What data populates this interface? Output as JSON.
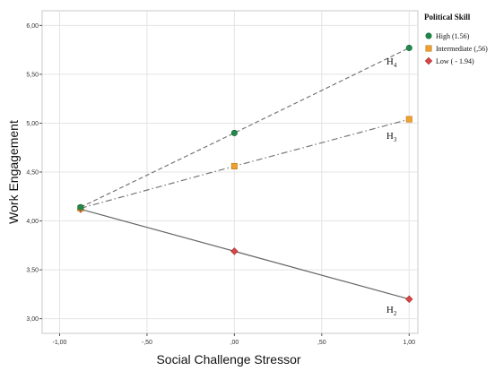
{
  "chart_data": {
    "type": "line",
    "xlabel": "Social Challenge Stressor",
    "ylabel": "Work Engagement",
    "xlim": [
      -1.1,
      1.05
    ],
    "ylim": [
      2.85,
      6.15
    ],
    "x_ticks": [
      -1.0,
      -0.5,
      0.0,
      0.5,
      1.0
    ],
    "x_tick_labels": [
      "-1,00",
      "-,50",
      ",00",
      ",50",
      "1,00"
    ],
    "y_ticks": [
      3.0,
      3.5,
      4.0,
      4.5,
      5.0,
      5.5,
      6.0
    ],
    "y_tick_labels": [
      "3,00",
      "3,50",
      "4,00",
      "4,50",
      "5,00",
      "5,50",
      "6,00"
    ],
    "grid": true,
    "legend": {
      "title": "Political Skill",
      "placement": "top-right",
      "entries": [
        {
          "label": "High (1.56)",
          "series": 0
        },
        {
          "label": "Intermediate (,56)",
          "series": 1
        },
        {
          "label": "Low ( - 1.94)",
          "series": 2
        }
      ]
    },
    "series": [
      {
        "name": "High (1.56)",
        "color": "#1e8a4a",
        "marker": "circle",
        "line_style": "dashed",
        "line_color": "#777777",
        "x": [
          -0.88,
          0.0,
          1.0
        ],
        "y": [
          4.14,
          4.9,
          5.77
        ]
      },
      {
        "name": "Intermediate (,56)",
        "color": "#f0a030",
        "marker": "square",
        "line_style": "dashdot",
        "line_color": "#777777",
        "x": [
          -0.88,
          0.0,
          1.0
        ],
        "y": [
          4.13,
          4.56,
          5.04
        ]
      },
      {
        "name": "Low ( - 1.94)",
        "color": "#d94545",
        "marker": "diamond",
        "line_style": "solid",
        "line_color": "#666666",
        "x": [
          -0.88,
          0.0,
          1.0
        ],
        "y": [
          4.12,
          3.69,
          3.2
        ]
      }
    ],
    "annotations": [
      {
        "text": "H",
        "subscript": "4",
        "x": 0.87,
        "y": 5.6
      },
      {
        "text": "H",
        "subscript": "3",
        "x": 0.87,
        "y": 4.84
      },
      {
        "text": "H",
        "subscript": "2",
        "x": 0.87,
        "y": 3.06
      }
    ]
  }
}
